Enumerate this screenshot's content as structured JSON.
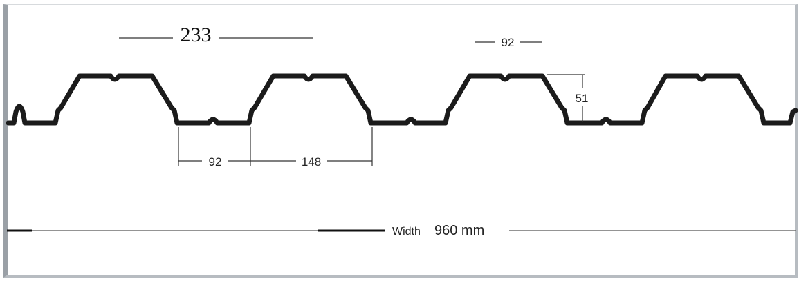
{
  "dimensions": {
    "pitch": "233",
    "rib_top_width": "92",
    "valley_width": "92",
    "rib_base_width": "148",
    "rib_height": "51",
    "width_label": "Width",
    "width_value": "960 mm"
  }
}
